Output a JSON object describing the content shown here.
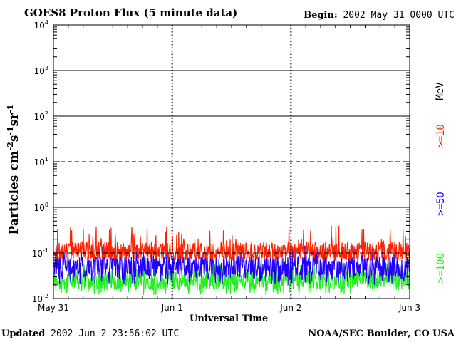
{
  "header": {
    "title": "GOES8 Proton Flux (5 minute data)",
    "begin_label": "Begin:",
    "begin_value": "2002 May 31 0000 UTC"
  },
  "footer": {
    "updated_label": "Updated",
    "updated_value": "2002 Jun  2 23:56:02 UTC",
    "agency": "NOAA/SEC Boulder, CO USA"
  },
  "legend": {
    "unit": "MeV",
    "items": [
      {
        "label": ">=10",
        "color": "#ff2200"
      },
      {
        "label": ">=50",
        "color": "#2200ff"
      },
      {
        "label": ">=100",
        "color": "#22ee22"
      }
    ]
  },
  "chart_data": {
    "type": "line",
    "title": "GOES8 Proton Flux (5 minute data)",
    "xlabel": "Universal Time",
    "ylabel_base": "Particles cm",
    "ylabel_exps": [
      "-2",
      "-1",
      "-1"
    ],
    "ylabel_parts": [
      "s",
      "sr"
    ],
    "yscale": "log",
    "ylim": [
      0.01,
      10000
    ],
    "y_ticks": [
      {
        "base": "10",
        "exp": "-2"
      },
      {
        "base": "10",
        "exp": "-1"
      },
      {
        "base": "10",
        "exp": "0"
      },
      {
        "base": "10",
        "exp": "1"
      },
      {
        "base": "10",
        "exp": "2"
      },
      {
        "base": "10",
        "exp": "3"
      },
      {
        "base": "10",
        "exp": "4"
      }
    ],
    "x_ticks": [
      "May 31",
      "Jun 1",
      "Jun 2",
      "Jun 3"
    ],
    "x_range_days": [
      0,
      3
    ],
    "grid": true,
    "series": [
      {
        "name": ">=10 MeV",
        "color": "#ff2200",
        "typical": 0.11,
        "min": 0.07,
        "max": 0.4
      },
      {
        "name": ">=50 MeV",
        "color": "#2200ff",
        "typical": 0.05,
        "min": 0.02,
        "max": 0.15
      },
      {
        "name": ">=100 MeV",
        "color": "#22ee22",
        "typical": 0.025,
        "min": 0.012,
        "max": 0.06
      }
    ]
  }
}
